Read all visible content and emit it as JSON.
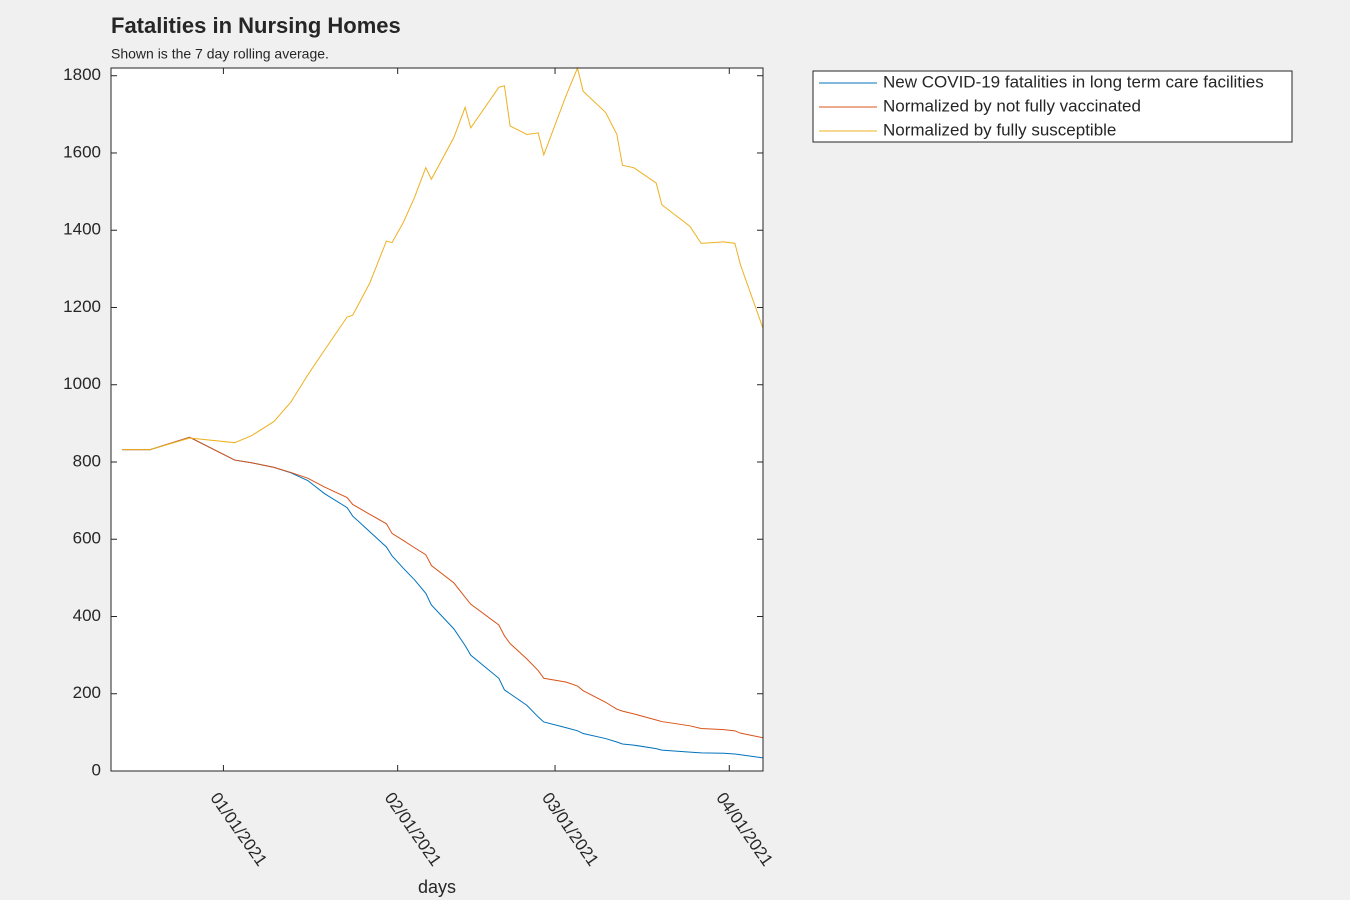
{
  "chart_data": {
    "type": "line",
    "title": "Fatalities in Nursing Homes",
    "subtitle": "Shown is the 7 day rolling average.",
    "x_label": "days",
    "x": [
      "2020-12-14",
      "2020-12-19",
      "2020-12-26",
      "2021-01-03",
      "2021-01-06",
      "2021-01-10",
      "2021-01-13",
      "2021-01-16",
      "2021-01-19",
      "2021-01-23",
      "2021-01-24",
      "2021-01-27",
      "2021-01-30",
      "2021-01-31",
      "2021-02-02",
      "2021-02-04",
      "2021-02-06",
      "2021-02-07",
      "2021-02-11",
      "2021-02-13",
      "2021-02-14",
      "2021-02-19",
      "2021-02-20",
      "2021-02-21",
      "2021-02-24",
      "2021-02-26",
      "2021-02-27",
      "2021-03-03",
      "2021-03-05",
      "2021-03-06",
      "2021-03-10",
      "2021-03-12",
      "2021-03-13",
      "2021-03-15",
      "2021-03-19",
      "2021-03-20",
      "2021-03-25",
      "2021-03-27",
      "2021-03-31",
      "2021-04-02",
      "2021-04-03",
      "2021-04-07"
    ],
    "series": [
      {
        "name": "New COVID-19 fatalities in long term care facilities",
        "color": "#0072BD",
        "values": [
          832,
          832,
          864,
          805,
          798,
          786,
          772,
          752,
          718,
          682,
          660,
          620,
          580,
          557,
          525,
          495,
          460,
          430,
          368,
          325,
          300,
          240,
          210,
          200,
          170,
          140,
          127,
          112,
          104,
          97,
          84,
          75,
          70,
          67,
          58,
          54,
          49,
          47,
          46,
          44,
          42,
          34
        ]
      },
      {
        "name": "Normalized by not fully vaccinated",
        "color": "#D95319",
        "values": [
          832,
          832,
          864,
          805,
          798,
          786,
          773,
          758,
          735,
          708,
          690,
          665,
          640,
          615,
          597,
          578,
          560,
          532,
          487,
          450,
          432,
          378,
          350,
          330,
          290,
          260,
          240,
          230,
          220,
          208,
          178,
          160,
          155,
          148,
          132,
          128,
          117,
          110,
          107,
          104,
          98,
          86
        ]
      },
      {
        "name": "Normalized by fully susceptible",
        "color": "#EDB120",
        "values": [
          832,
          832,
          862,
          850,
          868,
          905,
          955,
          1025,
          1090,
          1175,
          1180,
          1262,
          1372,
          1368,
          1420,
          1485,
          1562,
          1532,
          1640,
          1718,
          1665,
          1770,
          1774,
          1670,
          1648,
          1652,
          1595,
          1750,
          1820,
          1760,
          1705,
          1648,
          1568,
          1562,
          1522,
          1466,
          1410,
          1366,
          1370,
          1366,
          1310,
          1146
        ]
      }
    ],
    "xlim": [
      "2020-12-12",
      "2021-04-07"
    ],
    "xticks": [
      {
        "value": "2021-01-01",
        "label": "01/01/2021"
      },
      {
        "value": "2021-02-01",
        "label": "02/01/2021"
      },
      {
        "value": "2021-03-01",
        "label": "03/01/2021"
      },
      {
        "value": "2021-04-01",
        "label": "04/01/2021"
      }
    ],
    "ylim": [
      0,
      1820
    ],
    "yticks": [
      0,
      200,
      400,
      600,
      800,
      1000,
      1200,
      1400,
      1600,
      1800
    ],
    "grid": false,
    "legend": "outside-top-right"
  }
}
